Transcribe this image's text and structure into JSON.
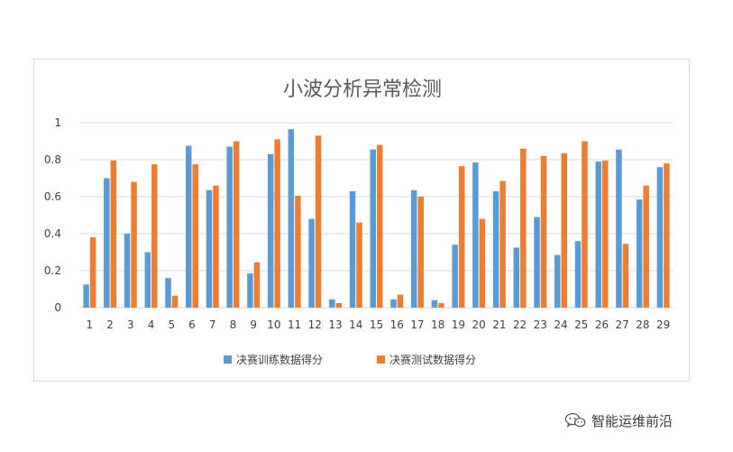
{
  "chart_data": {
    "type": "bar",
    "title": "小波分析异常检测",
    "categories": [
      "1",
      "2",
      "3",
      "4",
      "5",
      "6",
      "7",
      "8",
      "9",
      "10",
      "11",
      "12",
      "13",
      "14",
      "15",
      "16",
      "17",
      "18",
      "19",
      "20",
      "21",
      "22",
      "23",
      "24",
      "25",
      "26",
      "27",
      "28",
      "29"
    ],
    "series": [
      {
        "name": "决赛训练数据得分",
        "color": "#5B9BD5",
        "values": [
          0.125,
          0.7,
          0.4,
          0.3,
          0.16,
          0.875,
          0.635,
          0.87,
          0.185,
          0.83,
          0.965,
          0.48,
          0.045,
          0.63,
          0.855,
          0.045,
          0.635,
          0.04,
          0.34,
          0.785,
          0.63,
          0.325,
          0.49,
          0.285,
          0.36,
          0.79,
          0.855,
          0.585,
          0.76
        ]
      },
      {
        "name": "决赛测试数据得分",
        "color": "#ED7D31",
        "values": [
          0.38,
          0.795,
          0.68,
          0.775,
          0.065,
          0.775,
          0.66,
          0.9,
          0.245,
          0.91,
          0.605,
          0.93,
          0.025,
          0.46,
          0.88,
          0.07,
          0.6,
          0.025,
          0.765,
          0.48,
          0.685,
          0.86,
          0.82,
          0.835,
          0.9,
          0.795,
          0.345,
          0.66,
          0.78
        ]
      }
    ],
    "ylim": [
      0,
      1
    ],
    "yticks": [
      "0",
      "0.2",
      "0.4",
      "0.6",
      "0.8",
      "1"
    ],
    "grid": true,
    "legend": "bottom"
  },
  "watermark": {
    "icon": "wechat-icon",
    "text": "智能运维前沿"
  }
}
